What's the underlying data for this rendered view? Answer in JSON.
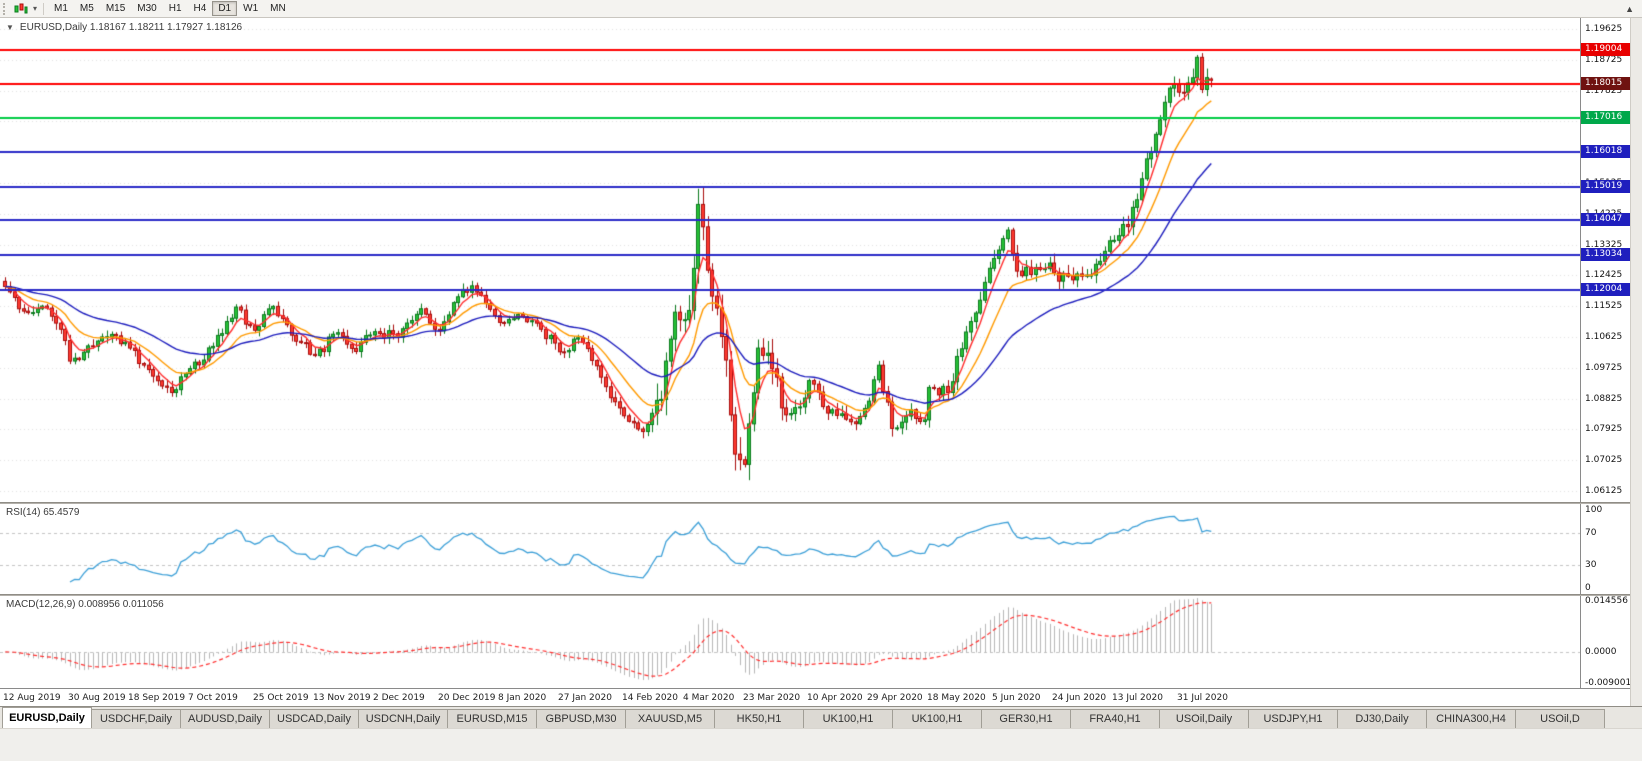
{
  "toolbar": {
    "timeframes": [
      "M1",
      "M5",
      "M15",
      "M30",
      "H1",
      "H4",
      "D1",
      "W1",
      "MN"
    ],
    "active": "D1",
    "scroll_icon": "▲",
    "caret_icon": "▾"
  },
  "chart_header": {
    "collapse_icon": "▼",
    "title": "EURUSD,Daily  1.18167 1.18211 1.17927 1.18126"
  },
  "panels": {
    "rsi": {
      "label": "RSI(14) 65.4579",
      "period": 14,
      "value": "65.4579",
      "levels": [
        70,
        30
      ],
      "range": [
        -8,
        108
      ],
      "line_color": "#3da0d8",
      "ticks": [
        {
          "label": "100",
          "value": 100
        },
        {
          "label": "70",
          "value": 70
        },
        {
          "label": "30",
          "value": 30
        },
        {
          "label": "0",
          "value": 0
        }
      ]
    },
    "macd": {
      "label": "MACD(12,26,9) 0.008956 0.011056",
      "fast": 12,
      "slow": 26,
      "signal": 9,
      "macd_value": "0.008956",
      "signal_value": "0.011056",
      "range": [
        -0.0098,
        0.0152
      ],
      "hist_color": "#b8b8b8",
      "signal_color": "#ff3030",
      "ticks": [
        {
          "label": "0.014556",
          "value": 0.014556
        },
        {
          "label": "0.0000",
          "value": 0
        },
        {
          "label": "-0.009001",
          "value": -0.009001
        }
      ]
    }
  },
  "chart_data": {
    "type": "candlestick",
    "symbol": "EURUSD",
    "timeframe": "Daily",
    "last_ohlc": {
      "open": 1.18167,
      "high": 1.18211,
      "low": 1.17927,
      "close": 1.18126
    },
    "num_candles": 262,
    "plot_fraction": 0.77,
    "y_range": [
      1.058,
      1.1995
    ],
    "y_ticks": [
      1.19625,
      1.18725,
      1.17825,
      1.16925,
      1.16025,
      1.15125,
      1.14225,
      1.13325,
      1.12425,
      1.11525,
      1.10625,
      1.09725,
      1.08825,
      1.07925,
      1.07025,
      1.06125
    ],
    "close_anchors": [
      [
        0,
        1.121
      ],
      [
        4,
        1.1138
      ],
      [
        9,
        1.1147
      ],
      [
        12,
        1.1085
      ],
      [
        14,
        1.0992
      ],
      [
        19,
        1.1035
      ],
      [
        23,
        1.107
      ],
      [
        27,
        1.103
      ],
      [
        32,
        1.0948
      ],
      [
        36,
        1.09
      ],
      [
        40,
        1.097
      ],
      [
        45,
        1.1035
      ],
      [
        50,
        1.115
      ],
      [
        54,
        1.1082
      ],
      [
        58,
        1.1152
      ],
      [
        63,
        1.105
      ],
      [
        67,
        1.1008
      ],
      [
        72,
        1.1075
      ],
      [
        76,
        1.102
      ],
      [
        80,
        1.1078
      ],
      [
        85,
        1.1062
      ],
      [
        90,
        1.1145
      ],
      [
        94,
        1.108
      ],
      [
        98,
        1.118
      ],
      [
        101,
        1.1212
      ],
      [
        104,
        1.116
      ],
      [
        107,
        1.1105
      ],
      [
        111,
        1.1128
      ],
      [
        116,
        1.1085
      ],
      [
        120,
        1.1019
      ],
      [
        124,
        1.106
      ],
      [
        129,
        1.0945
      ],
      [
        134,
        1.0832
      ],
      [
        138,
        1.0786
      ],
      [
        142,
        1.088
      ],
      [
        145,
        1.1135
      ],
      [
        148,
        1.114
      ],
      [
        150,
        1.145
      ],
      [
        153,
        1.1182
      ],
      [
        156,
        1.0995
      ],
      [
        158,
        1.072
      ],
      [
        160,
        1.069
      ],
      [
        163,
        1.103
      ],
      [
        165,
        1.1015
      ],
      [
        168,
        1.0855
      ],
      [
        172,
        1.0858
      ],
      [
        174,
        1.0935
      ],
      [
        178,
        1.084
      ],
      [
        182,
        1.0822
      ],
      [
        185,
        1.083
      ],
      [
        187,
        1.0875
      ],
      [
        189,
        1.098
      ],
      [
        192,
        1.0795
      ],
      [
        196,
        1.085
      ],
      [
        199,
        1.082
      ],
      [
        200,
        1.0915
      ],
      [
        204,
        1.09
      ],
      [
        208,
        1.1077
      ],
      [
        211,
        1.117
      ],
      [
        214,
        1.1292
      ],
      [
        217,
        1.1375
      ],
      [
        219,
        1.1255
      ],
      [
        222,
        1.1245
      ],
      [
        225,
        1.1262
      ],
      [
        227,
        1.125
      ],
      [
        230,
        1.124
      ],
      [
        233,
        1.124
      ],
      [
        236,
        1.1275
      ],
      [
        240,
        1.1345
      ],
      [
        243,
        1.1385
      ],
      [
        246,
        1.1525
      ],
      [
        249,
        1.1655
      ],
      [
        252,
        1.179
      ],
      [
        254,
        1.1778
      ],
      [
        256,
        1.1805
      ],
      [
        258,
        1.188
      ],
      [
        259,
        1.1786
      ],
      [
        261,
        1.18126
      ]
    ],
    "volatility_zones": [
      {
        "until": 140,
        "amp": 0.0022
      },
      {
        "until": 170,
        "amp": 0.0058
      },
      {
        "until": 205,
        "amp": 0.0027
      },
      {
        "until": 262,
        "amp": 0.0031
      }
    ],
    "x_labels": [
      {
        "label": "12 Aug 2019",
        "index": 0
      },
      {
        "label": "30 Aug 2019",
        "index": 14
      },
      {
        "label": "18 Sep 2019",
        "index": 27
      },
      {
        "label": "7 Oct 2019",
        "index": 40
      },
      {
        "label": "25 Oct 2019",
        "index": 54
      },
      {
        "label": "13 Nov 2019",
        "index": 67
      },
      {
        "label": "2 Dec 2019",
        "index": 80
      },
      {
        "label": "20 Dec 2019",
        "index": 94
      },
      {
        "label": "8 Jan 2020",
        "index": 107
      },
      {
        "label": "27 Jan 2020",
        "index": 120
      },
      {
        "label": "14 Feb 2020",
        "index": 134
      },
      {
        "label": "4 Mar 2020",
        "index": 147
      },
      {
        "label": "23 Mar 2020",
        "index": 160
      },
      {
        "label": "10 Apr 2020",
        "index": 174
      },
      {
        "label": "29 Apr 2020",
        "index": 187
      },
      {
        "label": "18 May 2020",
        "index": 200
      },
      {
        "label": "5 Jun 2020",
        "index": 214
      },
      {
        "label": "24 Jun 2020",
        "index": 227
      },
      {
        "label": "13 Jul 2020",
        "index": 240
      },
      {
        "label": "31 Jul 2020",
        "index": 254
      }
    ],
    "hlines": [
      {
        "price": 1.19004,
        "label": "1.19004",
        "line_color": "#ff0000",
        "badge_color": "#e80000"
      },
      {
        "price": 1.18015,
        "label": "1.18015",
        "line_color": "#ff0000",
        "badge_color": "#6f1210"
      },
      {
        "price": 1.17016,
        "label": "1.17016",
        "line_color": "#00cc44",
        "badge_color": "#00a84a"
      },
      {
        "price": 1.16018,
        "label": "1.16018",
        "line_color": "#2a2ac8",
        "badge_color": "#1f1fbe"
      },
      {
        "price": 1.15019,
        "label": "1.15019",
        "line_color": "#2a2ac8",
        "badge_color": "#1f1fbe"
      },
      {
        "price": 1.14047,
        "label": "1.14047",
        "line_color": "#2a2ac8",
        "badge_color": "#1f1fbe"
      },
      {
        "price": 1.13034,
        "label": "1.13034",
        "line_color": "#2a2ac8",
        "badge_color": "#1f1fbe"
      },
      {
        "price": 1.12004,
        "label": "1.12004",
        "line_color": "#2a2ac8",
        "badge_color": "#1f1fbe"
      }
    ],
    "moving_averages": [
      {
        "period": 5,
        "color": "#ff2d2d"
      },
      {
        "period": 13,
        "color": "#ff9a00"
      },
      {
        "period": 34,
        "color": "#1d1dbe"
      }
    ],
    "colors": {
      "up_body": "#27c238",
      "up_edge": "#0b7a1e",
      "down_body": "#ff3b30",
      "down_edge": "#a90d0d",
      "grid": "#e2e2e2",
      "axis_text": "#141414"
    }
  },
  "tabs": {
    "active_index": 0,
    "items": [
      "EURUSD,Daily",
      "USDCHF,Daily",
      "AUDUSD,Daily",
      "USDCAD,Daily",
      "USDCNH,Daily",
      "EURUSD,M15",
      "GBPUSD,M30",
      "XAUUSD,M5",
      "HK50,H1",
      "UK100,H1",
      "UK100,H1",
      "GER30,H1",
      "FRA40,H1",
      "USOil,Daily",
      "USDJPY,H1",
      "DJ30,Daily",
      "CHINA300,H4",
      "USOil,D"
    ]
  }
}
